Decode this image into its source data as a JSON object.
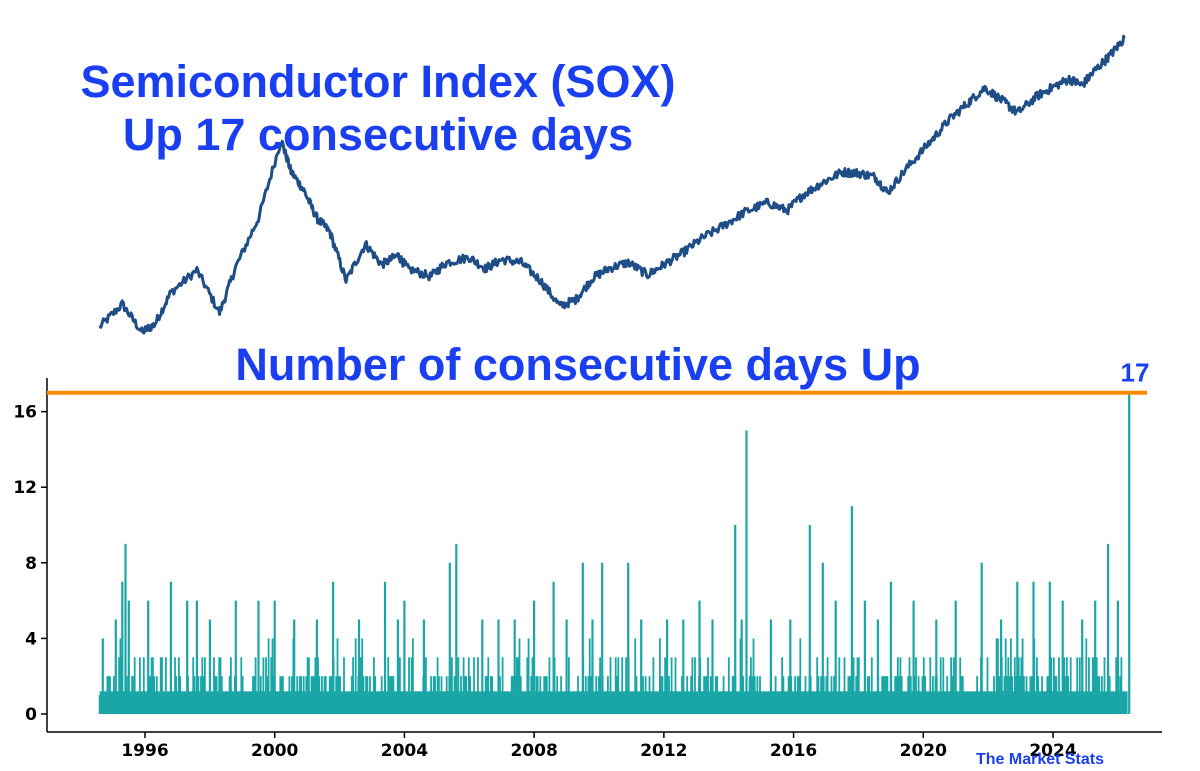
{
  "titles": {
    "price_line1": "Semiconductor Index (SOX)",
    "price_line2": "Up 17 consecutive days",
    "streak": "Number of consecutive days Up"
  },
  "watermark": "The Market Stats",
  "colors": {
    "title": "#1a3ff0",
    "price_line": "#1f4e86",
    "streak_bars": "#1aa6a6",
    "max_line": "#ff8c00",
    "axis": "#000000"
  },
  "chart_data": [
    {
      "type": "line",
      "title": "Semiconductor Index (SOX)",
      "subtitle": "Up 17 consecutive days",
      "scale": "log",
      "axes_visible": false,
      "x": [
        1994.6,
        1995.3,
        1995.9,
        1996.3,
        1996.8,
        1997.6,
        1998.3,
        1998.8,
        1999.5,
        2000.2,
        2000.5,
        2000.9,
        2001.3,
        2001.7,
        2002.2,
        2002.8,
        2003.3,
        2003.8,
        2004.1,
        2004.8,
        2005.3,
        2006.0,
        2006.5,
        2007.0,
        2007.6,
        2008.2,
        2008.8,
        2009.3,
        2009.8,
        2010.3,
        2010.9,
        2011.5,
        2012.0,
        2012.6,
        2013.2,
        2013.9,
        2014.5,
        2015.2,
        2015.8,
        2016.3,
        2016.9,
        2017.5,
        2018.0,
        2018.5,
        2018.9,
        2019.5,
        2020.2,
        2020.8,
        2021.4,
        2021.9,
        2022.5,
        2022.9,
        2023.5,
        2024.0,
        2024.5,
        2024.9,
        2025.3,
        2025.8,
        2026.2
      ],
      "y": [
        100,
        120,
        96,
        102,
        132,
        158,
        112,
        162,
        240,
        450,
        350,
        300,
        240,
        215,
        145,
        195,
        165,
        178,
        160,
        150,
        168,
        175,
        160,
        172,
        168,
        145,
        118,
        125,
        148,
        160,
        168,
        152,
        165,
        182,
        205,
        228,
        252,
        272,
        255,
        290,
        320,
        348,
        345,
        335,
        295,
        360,
        442,
        530,
        610,
        685,
        610,
        560,
        640,
        690,
        735,
        700,
        790,
        900,
        1020
      ]
    },
    {
      "type": "area",
      "title": "Number of consecutive days Up",
      "x_ticks": [
        "1996",
        "2000",
        "2004",
        "2008",
        "2012",
        "2016",
        "2020",
        "2024"
      ],
      "y_ticks": [
        "0",
        "4",
        "8",
        "12",
        "16"
      ],
      "ylim": [
        0,
        18
      ],
      "xlim": [
        1993.3,
        2027.3
      ],
      "max_line": {
        "value": 17,
        "label": "17"
      },
      "peaks": [
        {
          "x": 1994.7,
          "y": 4
        },
        {
          "x": 1995.1,
          "y": 5
        },
        {
          "x": 1995.3,
          "y": 7
        },
        {
          "x": 1995.4,
          "y": 9
        },
        {
          "x": 1995.5,
          "y": 6
        },
        {
          "x": 1996.1,
          "y": 6
        },
        {
          "x": 1996.8,
          "y": 7
        },
        {
          "x": 1997.3,
          "y": 6
        },
        {
          "x": 1997.6,
          "y": 6
        },
        {
          "x": 1998.0,
          "y": 5
        },
        {
          "x": 1998.8,
          "y": 6
        },
        {
          "x": 1999.5,
          "y": 6
        },
        {
          "x": 2000.0,
          "y": 6
        },
        {
          "x": 2000.6,
          "y": 5
        },
        {
          "x": 2001.3,
          "y": 5
        },
        {
          "x": 2001.8,
          "y": 7
        },
        {
          "x": 2002.6,
          "y": 5
        },
        {
          "x": 2003.4,
          "y": 7
        },
        {
          "x": 2003.8,
          "y": 5
        },
        {
          "x": 2004.0,
          "y": 6
        },
        {
          "x": 2004.6,
          "y": 5
        },
        {
          "x": 2005.4,
          "y": 8
        },
        {
          "x": 2005.6,
          "y": 9
        },
        {
          "x": 2006.4,
          "y": 5
        },
        {
          "x": 2006.9,
          "y": 5
        },
        {
          "x": 2007.4,
          "y": 5
        },
        {
          "x": 2008.0,
          "y": 6
        },
        {
          "x": 2008.6,
          "y": 7
        },
        {
          "x": 2009.0,
          "y": 5
        },
        {
          "x": 2009.5,
          "y": 8
        },
        {
          "x": 2009.8,
          "y": 5
        },
        {
          "x": 2010.1,
          "y": 8
        },
        {
          "x": 2010.9,
          "y": 8
        },
        {
          "x": 2011.3,
          "y": 5
        },
        {
          "x": 2012.1,
          "y": 5
        },
        {
          "x": 2012.6,
          "y": 5
        },
        {
          "x": 2013.1,
          "y": 6
        },
        {
          "x": 2013.5,
          "y": 5
        },
        {
          "x": 2014.2,
          "y": 10
        },
        {
          "x": 2014.4,
          "y": 5
        },
        {
          "x": 2014.55,
          "y": 15
        },
        {
          "x": 2015.3,
          "y": 5
        },
        {
          "x": 2015.9,
          "y": 5
        },
        {
          "x": 2016.5,
          "y": 10
        },
        {
          "x": 2016.9,
          "y": 8
        },
        {
          "x": 2017.3,
          "y": 6
        },
        {
          "x": 2017.8,
          "y": 11
        },
        {
          "x": 2018.2,
          "y": 6
        },
        {
          "x": 2018.6,
          "y": 5
        },
        {
          "x": 2019.0,
          "y": 7
        },
        {
          "x": 2019.7,
          "y": 6
        },
        {
          "x": 2020.4,
          "y": 5
        },
        {
          "x": 2021.0,
          "y": 6
        },
        {
          "x": 2021.8,
          "y": 8
        },
        {
          "x": 2022.4,
          "y": 5
        },
        {
          "x": 2022.9,
          "y": 7
        },
        {
          "x": 2023.4,
          "y": 7
        },
        {
          "x": 2023.9,
          "y": 7
        },
        {
          "x": 2024.3,
          "y": 6
        },
        {
          "x": 2024.9,
          "y": 5
        },
        {
          "x": 2025.3,
          "y": 6
        },
        {
          "x": 2025.7,
          "y": 9
        },
        {
          "x": 2026.0,
          "y": 6
        },
        {
          "x": 2026.35,
          "y": 17
        }
      ]
    }
  ]
}
